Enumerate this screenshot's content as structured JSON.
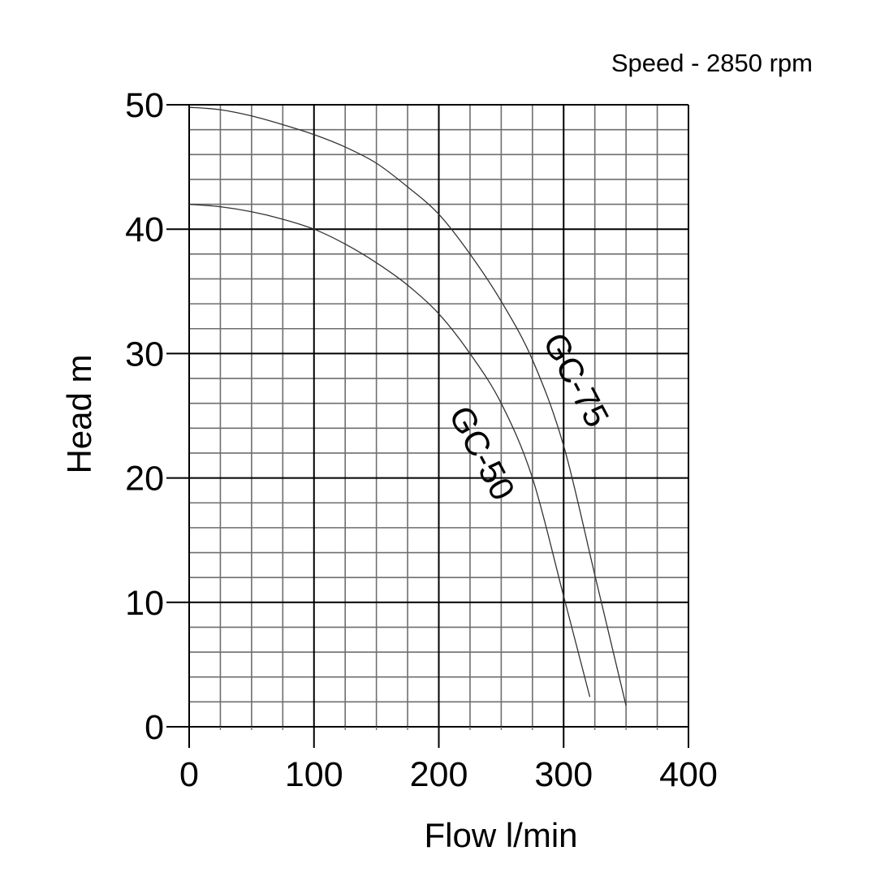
{
  "chart_data": {
    "type": "line",
    "title": "",
    "subtitle": "Speed - 2850 rpm",
    "xlabel": "Flow l/min",
    "ylabel": "Head m",
    "xlim": [
      0,
      400
    ],
    "ylim": [
      0,
      50
    ],
    "x_ticks": [
      0,
      100,
      200,
      300,
      400
    ],
    "y_ticks": [
      0,
      10,
      20,
      30,
      40,
      50
    ],
    "x_minor_step": 25,
    "y_minor_step": 2,
    "grid": true,
    "legend": "inline curve labels",
    "series": [
      {
        "name": "GC-75",
        "x": [
          0,
          25,
          50,
          75,
          100,
          125,
          150,
          175,
          200,
          225,
          250,
          275,
          300,
          325,
          350
        ],
        "y": [
          49.8,
          49.6,
          49.1,
          48.4,
          47.6,
          46.6,
          45.3,
          43.4,
          41.2,
          38.0,
          34.2,
          29.5,
          22.6,
          12.2,
          1.7
        ]
      },
      {
        "name": "GC-50",
        "x": [
          0,
          25,
          50,
          75,
          100,
          125,
          150,
          175,
          200,
          225,
          250,
          275,
          300,
          321
        ],
        "y": [
          42.0,
          41.8,
          41.4,
          40.8,
          40.0,
          38.8,
          37.3,
          35.5,
          33.2,
          30.0,
          26.0,
          20.0,
          10.5,
          2.4
        ]
      }
    ],
    "annotations": [
      {
        "text": "GC-75",
        "near_x": 300,
        "near_y": 27,
        "rotation_deg": 62
      },
      {
        "text": "GC-50",
        "near_x": 240,
        "near_y": 21,
        "rotation_deg": 62
      }
    ]
  }
}
